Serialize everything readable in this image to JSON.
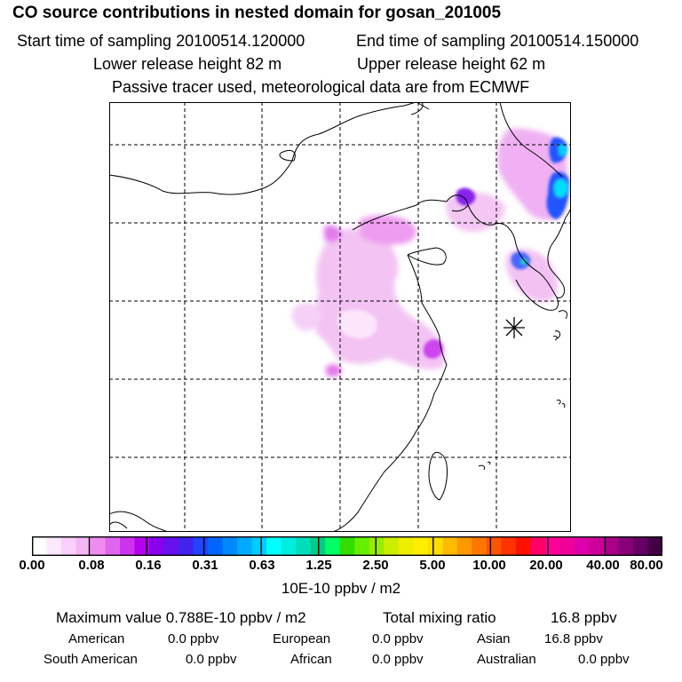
{
  "header": {
    "title": "CO  source contributions in nested domain for gosan_201005",
    "start_label": "Start time of sampling 20100514.120000",
    "end_label": "End time of sampling 20100514.150000",
    "lower_label": "Lower release height   82 m",
    "upper_label": "Upper release height   62 m",
    "note": "Passive tracer used, meteorological data are from ECMWF"
  },
  "colorbar": {
    "tick_labels": [
      "0.00",
      "0.08",
      "0.16",
      "0.31",
      "0.63",
      "1.25",
      "2.50",
      "5.00",
      "10.00",
      "20.00",
      "40.00",
      "80.00"
    ],
    "unit": "10E-10 ppbv / m2",
    "colors": [
      "#ffffff",
      "#fde8fd",
      "#f9d0f9",
      "#f5b6f5",
      "#ee8cef",
      "#e066ef",
      "#cc33ee",
      "#b300ee",
      "#8800ee",
      "#6611ee",
      "#4422ee",
      "#2244ff",
      "#0066ff",
      "#0088ff",
      "#00aaff",
      "#00ccff",
      "#00ffff",
      "#00eedd",
      "#00ddbb",
      "#00cc88",
      "#00ff66",
      "#33dd00",
      "#66ee00",
      "#99ee00",
      "#ccee00",
      "#eeee00",
      "#ffee00",
      "#ffdd00",
      "#ffbb00",
      "#ff9900",
      "#ff7700",
      "#ff5500",
      "#ff3300",
      "#ff1100",
      "#ff0066",
      "#ff0099",
      "#ee0099",
      "#dd00aa",
      "#cc0099",
      "#aa0088",
      "#880077",
      "#660066",
      "#440044"
    ]
  },
  "stats": {
    "max_label": "Maximum value  0.788E-10 ppbv / m2",
    "total_label": "Total mixing ratio",
    "total_value": "16.8 ppbv",
    "american_label": "American",
    "american_value": "0.0 ppbv",
    "european_label": "European",
    "european_value": "0.0 ppbv",
    "asian_label": "Asian",
    "asian_value": "16.8 ppbv",
    "south_american_label": "South American",
    "south_american_value": "0.0 ppbv",
    "african_label": "African",
    "african_value": "0.0 ppbv",
    "australian_label": "Australian",
    "australian_value": "0.0 ppbv"
  }
}
